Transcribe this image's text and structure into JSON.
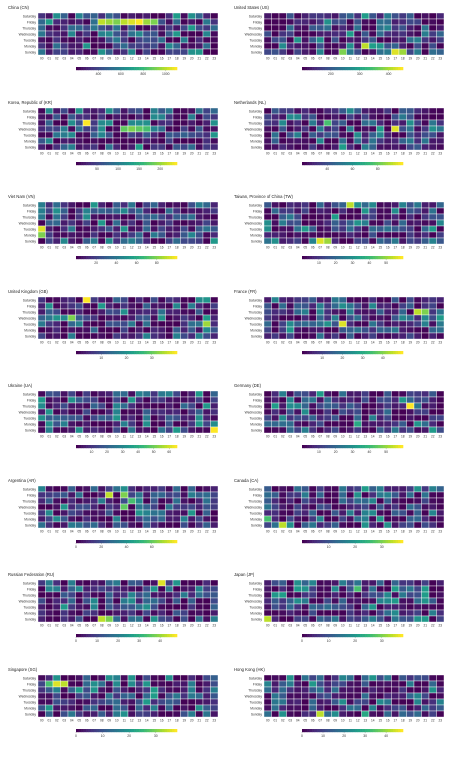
{
  "chart_data": {
    "type": "heatmap",
    "rows": [
      "Saturday",
      "Friday",
      "Thursday",
      "Wednesday",
      "Tuesday",
      "Monday",
      "Sunday"
    ],
    "columns": [
      "00",
      "01",
      "02",
      "03",
      "04",
      "05",
      "06",
      "07",
      "08",
      "09",
      "10",
      "11",
      "12",
      "13",
      "14",
      "15",
      "16",
      "17",
      "18",
      "19",
      "20",
      "21",
      "22",
      "23"
    ],
    "colormap": [
      "#440154",
      "#482878",
      "#3e4a89",
      "#31688e",
      "#26828e",
      "#1f9e89",
      "#35b779",
      "#6ece58",
      "#b5de2b",
      "#fde725"
    ],
    "panels": [
      {
        "title": "China (CN)",
        "min": 200,
        "max": 1100,
        "ticks": [
          400,
          600,
          800,
          1000
        ],
        "seed": 1,
        "hot": [
          [
            1,
            8,
            0.9
          ],
          [
            1,
            9,
            0.85
          ],
          [
            1,
            10,
            0.8
          ],
          [
            1,
            11,
            0.9
          ],
          [
            1,
            12,
            0.95
          ],
          [
            1,
            13,
            1.0
          ],
          [
            1,
            14,
            0.85
          ],
          [
            1,
            15,
            0.8
          ]
        ]
      },
      {
        "title": "United States (US)",
        "min": 100,
        "max": 450,
        "ticks": [
          200,
          300,
          400
        ],
        "seed": 2,
        "hot": [
          [
            6,
            10,
            0.8
          ],
          [
            5,
            13,
            0.9
          ],
          [
            6,
            17,
            0.95
          ],
          [
            6,
            18,
            0.85
          ]
        ]
      },
      {
        "title": "Korea, Republic of (KR)",
        "min": 0,
        "max": 240,
        "ticks": [
          50,
          100,
          150,
          200
        ],
        "seed": 3,
        "hot": [
          [
            2,
            6,
            1.0
          ],
          [
            3,
            11,
            0.75
          ],
          [
            3,
            12,
            0.8
          ],
          [
            3,
            13,
            0.75
          ],
          [
            3,
            14,
            0.7
          ]
        ]
      },
      {
        "title": "Netherlands (NL)",
        "min": 20,
        "max": 100,
        "ticks": [
          40,
          60,
          80
        ],
        "seed": 4,
        "hot": [
          [
            3,
            17,
            0.95
          ],
          [
            2,
            8,
            0.7
          ]
        ]
      },
      {
        "title": "Viet Nam (VN)",
        "min": 0,
        "max": 100,
        "ticks": [
          20,
          40,
          60,
          80
        ],
        "seed": 5,
        "hot": [
          [
            4,
            0,
            0.95
          ],
          [
            5,
            0,
            0.8
          ]
        ]
      },
      {
        "title": "Taiwan, Province of China (TW)",
        "min": 0,
        "max": 60,
        "ticks": [
          10,
          20,
          30,
          40,
          50
        ],
        "seed": 6,
        "hot": [
          [
            6,
            7,
            0.95
          ],
          [
            6,
            8,
            0.85
          ],
          [
            0,
            11,
            0.9
          ]
        ]
      },
      {
        "title": "United Kingdom (GB)",
        "min": 0,
        "max": 40,
        "ticks": [
          10,
          20,
          30
        ],
        "seed": 7,
        "hot": [
          [
            0,
            6,
            1.0
          ],
          [
            3,
            4,
            0.8
          ],
          [
            4,
            22,
            0.85
          ]
        ]
      },
      {
        "title": "France (FR)",
        "min": 0,
        "max": 50,
        "ticks": [
          10,
          20,
          30,
          40
        ],
        "seed": 8,
        "hot": [
          [
            4,
            10,
            0.95
          ],
          [
            2,
            20,
            0.9
          ],
          [
            2,
            21,
            0.8
          ]
        ]
      },
      {
        "title": "Ukraine (UA)",
        "min": 0,
        "max": 65,
        "ticks": [
          10,
          20,
          30,
          40,
          50,
          60
        ],
        "seed": 9,
        "hot": [
          [
            6,
            23,
            1.0
          ],
          [
            4,
            0,
            0.5
          ]
        ]
      },
      {
        "title": "Germany (DE)",
        "min": 0,
        "max": 60,
        "ticks": [
          10,
          20,
          30,
          40,
          50
        ],
        "seed": 10,
        "hot": [
          [
            2,
            19,
            1.0
          ],
          [
            5,
            12,
            0.6
          ]
        ]
      },
      {
        "title": "Argentina (AR)",
        "min": 0,
        "max": 80,
        "ticks": [
          0,
          20,
          40,
          60
        ],
        "seed": 11,
        "hot": [
          [
            1,
            9,
            0.9
          ],
          [
            1,
            11,
            0.8
          ],
          [
            2,
            12,
            0.7
          ],
          [
            3,
            11,
            0.75
          ]
        ]
      },
      {
        "title": "Canada (CA)",
        "min": 0,
        "max": 38,
        "ticks": [
          10,
          20,
          30
        ],
        "seed": 12,
        "hot": [
          [
            6,
            2,
            0.9
          ],
          [
            5,
            0,
            0.7
          ]
        ]
      },
      {
        "title": "Russian Federation (RU)",
        "min": 0,
        "max": 48,
        "ticks": [
          0,
          10,
          20,
          30,
          40
        ],
        "seed": 13,
        "hot": [
          [
            0,
            16,
            0.95
          ],
          [
            6,
            8,
            0.9
          ],
          [
            6,
            9,
            0.8
          ]
        ]
      },
      {
        "title": "Japan (JP)",
        "min": 0,
        "max": 38,
        "ticks": [
          0,
          10,
          20,
          30
        ],
        "seed": 14,
        "hot": [
          [
            6,
            0,
            0.9
          ],
          [
            1,
            12,
            0.7
          ]
        ]
      },
      {
        "title": "Singapore (SG)",
        "min": 0,
        "max": 38,
        "ticks": [
          0,
          10,
          20,
          30
        ],
        "seed": 15,
        "hot": [
          [
            1,
            2,
            0.95
          ],
          [
            1,
            3,
            0.9
          ],
          [
            1,
            1,
            0.7
          ]
        ]
      },
      {
        "title": "Hong Kong (HK)",
        "min": 0,
        "max": 48,
        "ticks": [
          0,
          10,
          20,
          30,
          40
        ],
        "seed": 16,
        "hot": [
          [
            6,
            7,
            0.9
          ],
          [
            6,
            13,
            0.6
          ]
        ]
      }
    ]
  }
}
